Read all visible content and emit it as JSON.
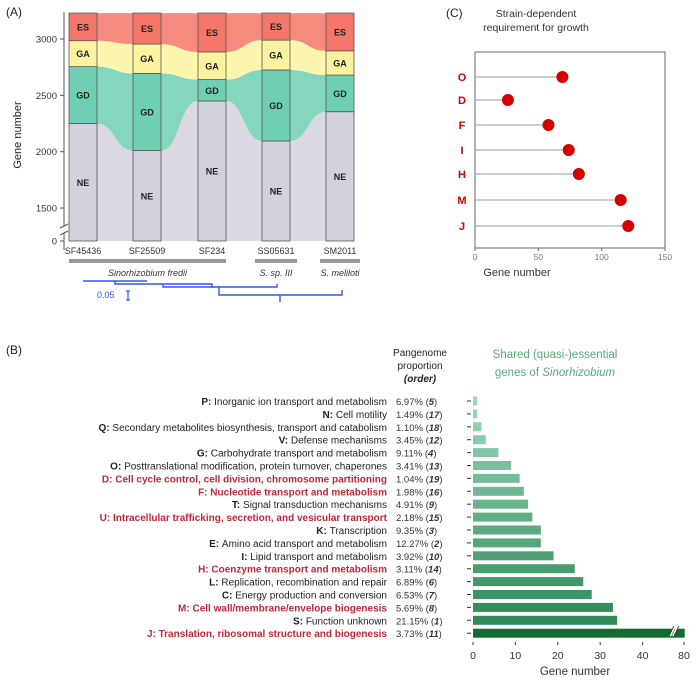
{
  "chart_data": [
    {
      "panel": "(A)",
      "type": "bar",
      "stacked": true,
      "ylabel": "Gene number",
      "yticks": [
        "0",
        "1500",
        "2000",
        "2500",
        "3000"
      ],
      "ylim": [
        0,
        3230
      ],
      "axis_break": [
        0,
        1400
      ],
      "categories": [
        "SF45436",
        "SF25509",
        "SF234",
        "SS05631",
        "SM2011"
      ],
      "groups": [
        {
          "label": "Sinorhizobium fredii",
          "members": [
            "SF45436",
            "SF25509",
            "SF234"
          ]
        },
        {
          "label": "S. sp. III",
          "members": [
            "SS05631"
          ]
        },
        {
          "label": "S. meliloti",
          "members": [
            "SM2011"
          ]
        }
      ],
      "tree_scale_label": "0.05",
      "series": [
        {
          "name": "NE",
          "color": "#d3d1dc",
          "values": [
            2250,
            2010,
            2450,
            2095,
            2355
          ]
        },
        {
          "name": "GD",
          "color": "#6fcfb4",
          "values": [
            505,
            685,
            190,
            630,
            325
          ]
        },
        {
          "name": "GA",
          "color": "#fbf3a0",
          "values": [
            230,
            260,
            245,
            265,
            215
          ]
        },
        {
          "name": "ES",
          "color": "#f5776a",
          "values": [
            245,
            275,
            345,
            240,
            335
          ]
        }
      ]
    },
    {
      "panel": "(C)",
      "type": "scatter",
      "style": "lollipop",
      "title": [
        "Strain-dependent",
        "requirement for growth"
      ],
      "xlabel": "Gene number",
      "xlim": [
        0,
        150
      ],
      "xticks": [
        "0",
        "50",
        "100",
        "150"
      ],
      "categories": [
        "O",
        "D",
        "F",
        "I",
        "H",
        "M",
        "J"
      ],
      "values": [
        69,
        26,
        58,
        74,
        82,
        115,
        121
      ],
      "color": "#d40000"
    },
    {
      "panel": "(B)",
      "type": "bar",
      "orientation": "horizontal",
      "title": [
        "Shared (quasi-)essential",
        "genes of ",
        "Sinorhizobium"
      ],
      "column_header": [
        "Pangenome",
        "proportion",
        "(order)"
      ],
      "xlabel": "Gene number",
      "xticks": [
        "0",
        "10",
        "20",
        "30",
        "40",
        "80"
      ],
      "axis_break_between": [
        40,
        80
      ],
      "categories": [
        {
          "code": "P",
          "name": "Inorganic ion transport and metabolism",
          "pct": "6.97%",
          "order": "5",
          "highlight": false
        },
        {
          "code": "N",
          "name": "Cell motility",
          "pct": "1.49%",
          "order": "17",
          "highlight": false
        },
        {
          "code": "Q",
          "name": "Secondary metabolites biosynthesis, transport and catabolism",
          "pct": "1.10%",
          "order": "18",
          "highlight": false
        },
        {
          "code": "V",
          "name": "Defense mechanisms",
          "pct": "3.45%",
          "order": "12",
          "highlight": false
        },
        {
          "code": "G",
          "name": "Carbohydrate transport and metabolism",
          "pct": "9.11%",
          "order": "4",
          "highlight": false
        },
        {
          "code": "O",
          "name": "Posttranslational modification, protein turnover, chaperones",
          "pct": "3.41%",
          "order": "13",
          "highlight": false
        },
        {
          "code": "D",
          "name": "Cell cycle control, cell division, chromosome partitioning",
          "pct": "1.04%",
          "order": "19",
          "highlight": true
        },
        {
          "code": "F",
          "name": "Nucleotide transport and metabolism",
          "pct": "1.98%",
          "order": "16",
          "highlight": true
        },
        {
          "code": "T",
          "name": "Signal transduction mechanisms",
          "pct": "4.91%",
          "order": "9",
          "highlight": false
        },
        {
          "code": "U",
          "name": "Intracellular trafficking, secretion, and vesicular transport",
          "pct": "2.18%",
          "order": "15",
          "highlight": true
        },
        {
          "code": "K",
          "name": "Transcription",
          "pct": "9.35%",
          "order": "3",
          "highlight": false
        },
        {
          "code": "E",
          "name": "Amino acid transport and metabolism",
          "pct": "12.27%",
          "order": "2",
          "highlight": false
        },
        {
          "code": "I",
          "name": "Lipid transport and metabolism",
          "pct": "3.92%",
          "order": "10",
          "highlight": false
        },
        {
          "code": "H",
          "name": "Coenzyme transport and metabolism",
          "pct": "3.11%",
          "order": "14",
          "highlight": true
        },
        {
          "code": "L",
          "name": "Replication, recombination and repair",
          "pct": "6.89%",
          "order": "6",
          "highlight": false
        },
        {
          "code": "C",
          "name": "Energy production and conversion",
          "pct": "6.53%",
          "order": "7",
          "highlight": false
        },
        {
          "code": "M",
          "name": "Cell wall/membrane/envelope biogenesis",
          "pct": "5.69%",
          "order": "8",
          "highlight": true
        },
        {
          "code": "S",
          "name": "Function unknown",
          "pct": "21.15%",
          "order": "1",
          "highlight": false
        },
        {
          "code": "J",
          "name": "Translation, ribosomal structure and biogenesis",
          "pct": "3.73%",
          "order": "11",
          "highlight": true
        }
      ],
      "values": [
        1,
        1,
        2,
        3,
        6,
        9,
        11,
        12,
        13,
        14,
        16,
        16,
        19,
        24,
        26,
        28,
        33,
        34,
        82
      ],
      "highlight_color": "#c0283a",
      "title_color": "#5aa77f"
    }
  ]
}
